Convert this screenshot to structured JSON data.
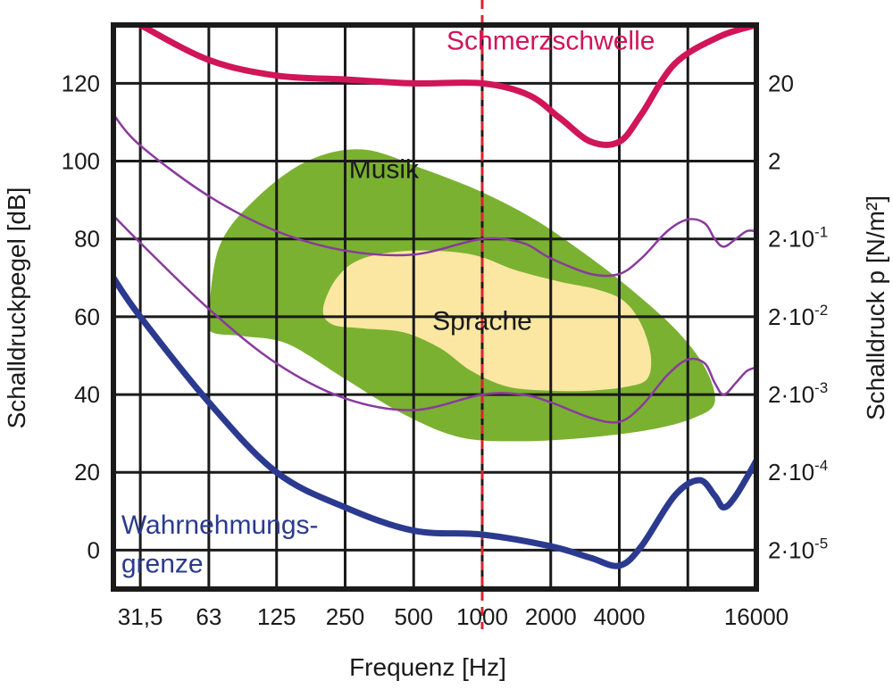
{
  "chart_data": {
    "type": "area",
    "x_scale": "log2",
    "xlim": [
      24,
      16000
    ],
    "ylim": [
      -10,
      135
    ],
    "x_ticks": [
      {
        "value": 31.5,
        "label": "31,5"
      },
      {
        "value": 63,
        "label": "63"
      },
      {
        "value": 125,
        "label": "125"
      },
      {
        "value": 250,
        "label": "250"
      },
      {
        "value": 500,
        "label": "500"
      },
      {
        "value": 1000,
        "label": "1000"
      },
      {
        "value": 2000,
        "label": "2000"
      },
      {
        "value": 4000,
        "label": "4000"
      },
      {
        "value": 16000,
        "label": "16000"
      }
    ],
    "x_grid": [
      31.5,
      63,
      125,
      250,
      500,
      1000,
      2000,
      4000,
      8000
    ],
    "y_ticks": [
      0,
      20,
      40,
      60,
      80,
      100,
      120
    ],
    "y2_ticks": [
      {
        "y": 120,
        "base": "20",
        "exp": ""
      },
      {
        "y": 100,
        "base": "2",
        "exp": ""
      },
      {
        "y": 80,
        "base": "2·10",
        "exp": "-1"
      },
      {
        "y": 60,
        "base": "2·10",
        "exp": "-2"
      },
      {
        "y": 40,
        "base": "2·10",
        "exp": "-3"
      },
      {
        "y": 20,
        "base": "2·10",
        "exp": "-4"
      },
      {
        "y": 0,
        "base": "2·10",
        "exp": "-5"
      }
    ],
    "grid": true,
    "xlabel": "Frequenz [Hz]",
    "ylabel": "Schalldruckpegel [dB]",
    "y2label": "Schalldruck p [N/m²]",
    "reference_line": {
      "x": 1000,
      "color": "#d7262c",
      "style": "dashed"
    },
    "series": [
      {
        "name": "Schmerzschwelle",
        "kind": "line",
        "color": "#d01559",
        "width": 7,
        "points": [
          [
            31.5,
            135
          ],
          [
            63,
            126
          ],
          [
            125,
            122
          ],
          [
            250,
            121
          ],
          [
            500,
            120
          ],
          [
            1000,
            120
          ],
          [
            1600,
            117
          ],
          [
            2200,
            111
          ],
          [
            3000,
            105
          ],
          [
            4000,
            105
          ],
          [
            5000,
            112
          ],
          [
            7000,
            125
          ],
          [
            11000,
            132
          ],
          [
            16000,
            135
          ]
        ]
      },
      {
        "name": "Wahrnehmungs-grenze",
        "kind": "line",
        "color": "#2b3a8f",
        "width": 7,
        "points": [
          [
            24,
            70
          ],
          [
            31.5,
            60
          ],
          [
            63,
            38
          ],
          [
            125,
            20
          ],
          [
            250,
            11
          ],
          [
            500,
            5
          ],
          [
            1000,
            4
          ],
          [
            2000,
            1
          ],
          [
            3000,
            -2
          ],
          [
            4000,
            -4
          ],
          [
            5000,
            1
          ],
          [
            7000,
            14
          ],
          [
            9000,
            18
          ],
          [
            10500,
            14
          ],
          [
            11500,
            11
          ],
          [
            13000,
            14
          ],
          [
            16000,
            23
          ]
        ]
      },
      {
        "name": "",
        "kind": "line",
        "color": "#8a3a9e",
        "width": 2.5,
        "points": [
          [
            24,
            112
          ],
          [
            31.5,
            104
          ],
          [
            63,
            91
          ],
          [
            125,
            82
          ],
          [
            250,
            77
          ],
          [
            500,
            76
          ],
          [
            1000,
            80
          ],
          [
            1500,
            79
          ],
          [
            2000,
            75
          ],
          [
            3000,
            71
          ],
          [
            4000,
            71
          ],
          [
            5000,
            75
          ],
          [
            6500,
            82
          ],
          [
            8000,
            85
          ],
          [
            9500,
            84
          ],
          [
            10500,
            80
          ],
          [
            11500,
            78
          ],
          [
            13000,
            80
          ],
          [
            14500,
            82
          ],
          [
            16000,
            82
          ]
        ]
      },
      {
        "name": "",
        "kind": "line",
        "color": "#8a3a9e",
        "width": 2.5,
        "points": [
          [
            24,
            86
          ],
          [
            31.5,
            79
          ],
          [
            63,
            62
          ],
          [
            125,
            48
          ],
          [
            250,
            39
          ],
          [
            500,
            36
          ],
          [
            1000,
            40
          ],
          [
            1500,
            40
          ],
          [
            2000,
            38
          ],
          [
            3000,
            34
          ],
          [
            4000,
            33
          ],
          [
            5000,
            37
          ],
          [
            6500,
            45
          ],
          [
            8000,
            49
          ],
          [
            9500,
            48
          ],
          [
            10500,
            43
          ],
          [
            11500,
            40
          ],
          [
            13000,
            43
          ],
          [
            14500,
            46
          ],
          [
            16000,
            47
          ]
        ]
      }
    ],
    "regions": [
      {
        "name": "Musik",
        "color": "#7ab131",
        "outline": [
          [
            63,
            60
          ],
          [
            70,
            78
          ],
          [
            100,
            90
          ],
          [
            170,
            100
          ],
          [
            300,
            103
          ],
          [
            550,
            98
          ],
          [
            1000,
            92
          ],
          [
            1700,
            85
          ],
          [
            2700,
            77
          ],
          [
            4300,
            68
          ],
          [
            7000,
            57
          ],
          [
            9500,
            47
          ],
          [
            10500,
            38
          ],
          [
            8500,
            34
          ],
          [
            5500,
            31
          ],
          [
            3000,
            29
          ],
          [
            1500,
            28
          ],
          [
            800,
            29
          ],
          [
            450,
            35
          ],
          [
            250,
            44
          ],
          [
            140,
            53
          ],
          [
            90,
            55
          ],
          [
            65,
            56
          ]
        ]
      },
      {
        "name": "Sprache",
        "color": "#fbe7a1",
        "outline": [
          [
            200,
            62
          ],
          [
            230,
            70
          ],
          [
            300,
            75
          ],
          [
            500,
            77
          ],
          [
            900,
            76
          ],
          [
            1400,
            72
          ],
          [
            2200,
            69
          ],
          [
            3200,
            67
          ],
          [
            4200,
            64
          ],
          [
            5000,
            58
          ],
          [
            5500,
            50
          ],
          [
            5300,
            44
          ],
          [
            4300,
            42
          ],
          [
            3000,
            41
          ],
          [
            2000,
            41
          ],
          [
            1300,
            42
          ],
          [
            900,
            46
          ],
          [
            650,
            52
          ],
          [
            450,
            56
          ],
          [
            300,
            57
          ],
          [
            220,
            58
          ]
        ]
      }
    ],
    "annotations": [
      {
        "text": "Schmerzschwelle",
        "x": 2000,
        "y": 131,
        "color": "#d01559",
        "anchor": "middle"
      },
      {
        "text": "Musik",
        "x": 370,
        "y": 98,
        "color": "#1a1a1a",
        "anchor": "middle"
      },
      {
        "text": "Sprache",
        "x": 1000,
        "y": 59,
        "color": "#1a1a1a",
        "anchor": "middle"
      },
      {
        "text": "Wahrnehmungs-",
        "x": 26,
        "y": 6.5,
        "color": "#2b3a8f",
        "anchor": "start"
      },
      {
        "text": "grenze",
        "x": 26,
        "y": -3.5,
        "color": "#2b3a8f",
        "anchor": "start"
      }
    ]
  }
}
